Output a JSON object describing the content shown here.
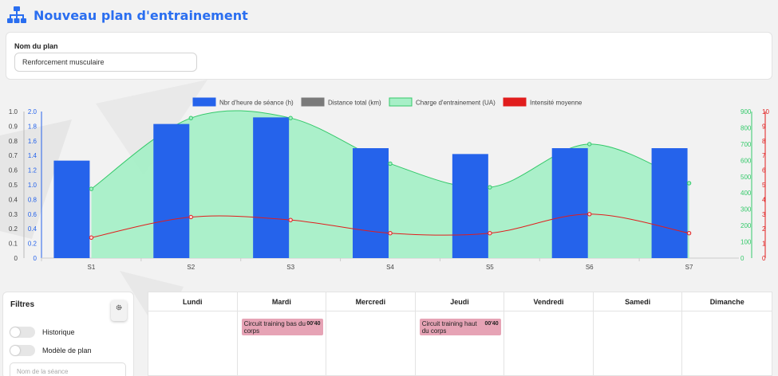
{
  "header": {
    "title": "Nouveau plan d'entrainement",
    "icon": "sitemap-icon"
  },
  "plan": {
    "label": "Nom du plan",
    "value": "Renforcement musculaire"
  },
  "chart_data": {
    "type": "bar",
    "categories": [
      "S1",
      "S2",
      "S3",
      "S4",
      "S5",
      "S6",
      "S7"
    ],
    "legend_position": "top",
    "series": [
      {
        "name": "Nbr d'heure de séance (h)",
        "type": "bar",
        "color": "#2563eb",
        "axis": "left-blue",
        "values": [
          1.33,
          1.83,
          1.92,
          1.5,
          1.42,
          1.5,
          1.5
        ]
      },
      {
        "name": "Distance total (km)",
        "type": "bar",
        "color": "#7a7a7a",
        "axis": "left-black",
        "values": [
          0,
          0,
          0,
          0,
          0,
          0,
          0
        ]
      },
      {
        "name": "Charge d'entrainement (UA)",
        "type": "area",
        "color": "#34c96a",
        "fill": "#a7efc7",
        "axis": "right-green",
        "values": [
          425,
          860,
          860,
          580,
          435,
          700,
          460
        ]
      },
      {
        "name": "Intensité moyenne",
        "type": "line",
        "color": "#e11d1d",
        "axis": "right-red",
        "values": [
          1.4,
          2.8,
          2.6,
          1.7,
          1.7,
          3.0,
          1.7
        ]
      }
    ],
    "axes": {
      "left_black": {
        "min": 0,
        "max": 1.0,
        "ticks": [
          "0",
          "0.1",
          "0.2",
          "0.3",
          "0.4",
          "0.5",
          "0.6",
          "0.7",
          "0.8",
          "0.9",
          "1.0"
        ]
      },
      "left_blue": {
        "min": 0,
        "max": 2.0,
        "ticks": [
          "0",
          "0.2",
          "0.4",
          "0.6",
          "0.8",
          "1.0",
          "1.2",
          "1.4",
          "1.6",
          "1.8",
          "2.0"
        ]
      },
      "right_green": {
        "min": 0,
        "max": 900,
        "ticks": [
          "0",
          "100",
          "200",
          "300",
          "400",
          "500",
          "600",
          "700",
          "800",
          "900"
        ]
      },
      "right_red": {
        "min": 0,
        "max": 10,
        "ticks": [
          "0",
          "1",
          "2",
          "3",
          "4",
          "5",
          "6",
          "7",
          "8",
          "9",
          "10"
        ]
      }
    }
  },
  "filters": {
    "title": "Filtres",
    "settings_icon": "gear-icon",
    "toggles": [
      {
        "label": "Historique",
        "on": false
      },
      {
        "label": "Modèle de plan",
        "on": false
      }
    ],
    "search_placeholder": "Nom de la séance"
  },
  "calendar": {
    "days": [
      "Lundi",
      "Mardi",
      "Mercredi",
      "Jeudi",
      "Vendredi",
      "Samedi",
      "Dimanche"
    ],
    "events": [
      {
        "day": "Mardi",
        "name": "Circuit training bas du corps",
        "duration": "00'40"
      },
      {
        "day": "Jeudi",
        "name": "Circuit training haut du corps",
        "duration": "00'40"
      }
    ]
  }
}
